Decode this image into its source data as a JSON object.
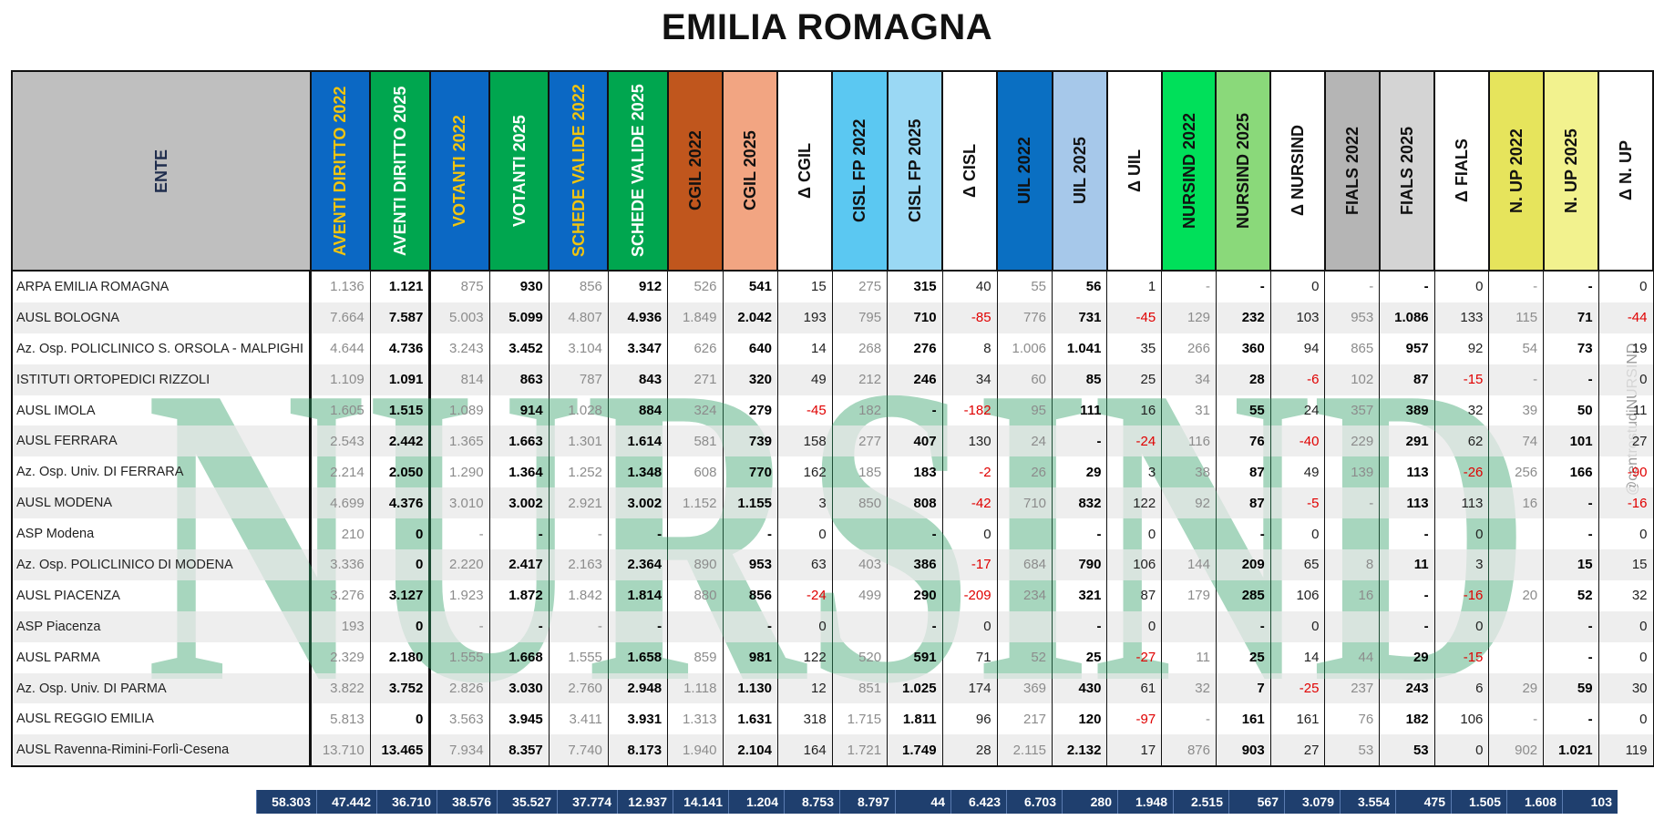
{
  "title": "EMILIA ROMAGNA",
  "side_credit": "@centrostudiNURSIND",
  "watermark_text": "NURSIND",
  "columns": [
    {
      "label": "ENTE",
      "bg": "#bfbfbf",
      "fg": "#1f2d4d",
      "kind": "ente"
    },
    {
      "label": "AVENTI DIRITTO 2022",
      "bg": "#0b68c4",
      "fg": "#f1c40f",
      "kind": "old"
    },
    {
      "label": "AVENTI DIRITTO 2025",
      "bg": "#00a64f",
      "fg": "#ffffff",
      "kind": "new"
    },
    {
      "label": "VOTANTI 2022",
      "bg": "#0b68c4",
      "fg": "#f1c40f",
      "kind": "old"
    },
    {
      "label": "VOTANTI 2025",
      "bg": "#00a64f",
      "fg": "#ffffff",
      "kind": "new"
    },
    {
      "label": "SCHEDE VALIDE 2022",
      "bg": "#0b68c4",
      "fg": "#f1c40f",
      "kind": "old"
    },
    {
      "label": "SCHEDE VALIDE 2025",
      "bg": "#00a64f",
      "fg": "#ffffff",
      "kind": "new"
    },
    {
      "label": "CGIL 2022",
      "bg": "#c0561d",
      "fg": "#111111",
      "kind": "old"
    },
    {
      "label": "CGIL 2025",
      "bg": "#f2a582",
      "fg": "#111111",
      "kind": "new"
    },
    {
      "label": "Δ CGIL",
      "bg": "#ffffff",
      "fg": "#111111",
      "kind": "delta"
    },
    {
      "label": "CISL FP 2022",
      "bg": "#5bc8f2",
      "fg": "#111111",
      "kind": "old"
    },
    {
      "label": "CISL FP 2025",
      "bg": "#9ad8f4",
      "fg": "#111111",
      "kind": "new"
    },
    {
      "label": "Δ CISL",
      "bg": "#ffffff",
      "fg": "#111111",
      "kind": "delta"
    },
    {
      "label": "UIL 2022",
      "bg": "#0a6fc2",
      "fg": "#111111",
      "kind": "old"
    },
    {
      "label": "UIL 2025",
      "bg": "#a6c8ea",
      "fg": "#111111",
      "kind": "new"
    },
    {
      "label": "Δ UIL",
      "bg": "#ffffff",
      "fg": "#111111",
      "kind": "delta"
    },
    {
      "label": "NURSIND 2022",
      "bg": "#00e05a",
      "fg": "#111111",
      "kind": "old"
    },
    {
      "label": "NURSIND 2025",
      "bg": "#8ad97a",
      "fg": "#111111",
      "kind": "new"
    },
    {
      "label": "Δ NURSIND",
      "bg": "#ffffff",
      "fg": "#111111",
      "kind": "delta"
    },
    {
      "label": "FIALS 2022",
      "bg": "#b5b5b5",
      "fg": "#111111",
      "kind": "old"
    },
    {
      "label": "FIALS 2025",
      "bg": "#d4d4d4",
      "fg": "#111111",
      "kind": "new"
    },
    {
      "label": "Δ FIALS",
      "bg": "#ffffff",
      "fg": "#111111",
      "kind": "delta"
    },
    {
      "label": "N. UP 2022",
      "bg": "#e6e45c",
      "fg": "#111111",
      "kind": "old"
    },
    {
      "label": "N. UP 2025",
      "bg": "#f2f28e",
      "fg": "#111111",
      "kind": "new"
    },
    {
      "label": "Δ N. UP",
      "bg": "#ffffff",
      "fg": "#111111",
      "kind": "delta"
    }
  ],
  "rows": [
    [
      "ARPA EMILIA ROMAGNA",
      "1.136",
      "1.121",
      "875",
      "930",
      "856",
      "912",
      "526",
      "541",
      "15",
      "275",
      "315",
      "40",
      "55",
      "56",
      "1",
      "-",
      "-",
      "0",
      "-",
      "-",
      "0",
      "-",
      "-",
      "0"
    ],
    [
      "AUSL BOLOGNA",
      "7.664",
      "7.587",
      "5.003",
      "5.099",
      "4.807",
      "4.936",
      "1.849",
      "2.042",
      "193",
      "795",
      "710",
      "-85",
      "776",
      "731",
      "-45",
      "129",
      "232",
      "103",
      "953",
      "1.086",
      "133",
      "115",
      "71",
      "-44"
    ],
    [
      "Az. Osp. POLICLINICO S. ORSOLA - MALPIGHI",
      "4.644",
      "4.736",
      "3.243",
      "3.452",
      "3.104",
      "3.347",
      "626",
      "640",
      "14",
      "268",
      "276",
      "8",
      "1.006",
      "1.041",
      "35",
      "266",
      "360",
      "94",
      "865",
      "957",
      "92",
      "54",
      "73",
      "19"
    ],
    [
      "ISTITUTI ORTOPEDICI RIZZOLI",
      "1.109",
      "1.091",
      "814",
      "863",
      "787",
      "843",
      "271",
      "320",
      "49",
      "212",
      "246",
      "34",
      "60",
      "85",
      "25",
      "34",
      "28",
      "-6",
      "102",
      "87",
      "-15",
      "-",
      "-",
      "0"
    ],
    [
      "AUSL IMOLA",
      "1.605",
      "1.515",
      "1.089",
      "914",
      "1.028",
      "884",
      "324",
      "279",
      "-45",
      "182",
      "-",
      "-182",
      "95",
      "111",
      "16",
      "31",
      "55",
      "24",
      "357",
      "389",
      "32",
      "39",
      "50",
      "11"
    ],
    [
      "AUSL FERRARA",
      "2.543",
      "2.442",
      "1.365",
      "1.663",
      "1.301",
      "1.614",
      "581",
      "739",
      "158",
      "277",
      "407",
      "130",
      "24",
      "-",
      "-24",
      "116",
      "76",
      "-40",
      "229",
      "291",
      "62",
      "74",
      "101",
      "27"
    ],
    [
      "Az. Osp. Univ. DI FERRARA",
      "2.214",
      "2.050",
      "1.290",
      "1.364",
      "1.252",
      "1.348",
      "608",
      "770",
      "162",
      "185",
      "183",
      "-2",
      "26",
      "29",
      "3",
      "38",
      "87",
      "49",
      "139",
      "113",
      "-26",
      "256",
      "166",
      "-90"
    ],
    [
      "AUSL MODENA",
      "4.699",
      "4.376",
      "3.010",
      "3.002",
      "2.921",
      "3.002",
      "1.152",
      "1.155",
      "3",
      "850",
      "808",
      "-42",
      "710",
      "832",
      "122",
      "92",
      "87",
      "-5",
      "-",
      "113",
      "113",
      "16",
      "-",
      "-16"
    ],
    [
      "ASP Modena",
      "210",
      "0",
      "-",
      "-",
      "-",
      "-",
      "",
      "-",
      "0",
      "",
      "-",
      "0",
      "",
      "-",
      "0",
      "",
      "-",
      "0",
      "",
      "-",
      "0",
      "",
      "-",
      "0"
    ],
    [
      "Az. Osp. POLICLINICO DI MODENA",
      "3.336",
      "0",
      "2.220",
      "2.417",
      "2.163",
      "2.364",
      "890",
      "953",
      "63",
      "403",
      "386",
      "-17",
      "684",
      "790",
      "106",
      "144",
      "209",
      "65",
      "8",
      "11",
      "3",
      "",
      "15",
      "15"
    ],
    [
      "AUSL PIACENZA",
      "3.276",
      "3.127",
      "1.923",
      "1.872",
      "1.842",
      "1.814",
      "880",
      "856",
      "-24",
      "499",
      "290",
      "-209",
      "234",
      "321",
      "87",
      "179",
      "285",
      "106",
      "16",
      "-",
      "-16",
      "20",
      "52",
      "32"
    ],
    [
      "ASP Piacenza",
      "193",
      "0",
      "-",
      "-",
      "-",
      "-",
      "",
      "-",
      "0",
      "",
      "-",
      "0",
      "",
      "-",
      "0",
      "",
      "-",
      "0",
      "",
      "-",
      "0",
      "",
      "-",
      "0"
    ],
    [
      "AUSL PARMA",
      "2.329",
      "2.180",
      "1.555",
      "1.668",
      "1.555",
      "1.658",
      "859",
      "981",
      "122",
      "520",
      "591",
      "71",
      "52",
      "25",
      "-27",
      "11",
      "25",
      "14",
      "44",
      "29",
      "-15",
      "",
      "-",
      "0"
    ],
    [
      "Az. Osp. Univ. DI PARMA",
      "3.822",
      "3.752",
      "2.826",
      "3.030",
      "2.760",
      "2.948",
      "1.118",
      "1.130",
      "12",
      "851",
      "1.025",
      "174",
      "369",
      "430",
      "61",
      "32",
      "7",
      "-25",
      "237",
      "243",
      "6",
      "29",
      "59",
      "30"
    ],
    [
      "AUSL REGGIO EMILIA",
      "5.813",
      "0",
      "3.563",
      "3.945",
      "3.411",
      "3.931",
      "1.313",
      "1.631",
      "318",
      "1.715",
      "1.811",
      "96",
      "217",
      "120",
      "-97",
      "-",
      "161",
      "161",
      "76",
      "182",
      "106",
      "-",
      "-",
      "0"
    ],
    [
      "AUSL Ravenna-Rimini-Forlì-Cesena",
      "13.710",
      "13.465",
      "7.934",
      "8.357",
      "7.740",
      "8.173",
      "1.940",
      "2.104",
      "164",
      "1.721",
      "1.749",
      "28",
      "2.115",
      "2.132",
      "17",
      "876",
      "903",
      "27",
      "53",
      "53",
      "0",
      "902",
      "1.021",
      "119"
    ]
  ],
  "totals": [
    "58.303",
    "47.442",
    "36.710",
    "38.576",
    "35.527",
    "37.774",
    "12.937",
    "14.141",
    "1.204",
    "8.753",
    "8.797",
    "44",
    "6.423",
    "6.703",
    "280",
    "1.948",
    "2.515",
    "567",
    "3.079",
    "3.554",
    "475",
    "1.505",
    "1.608",
    "103"
  ]
}
